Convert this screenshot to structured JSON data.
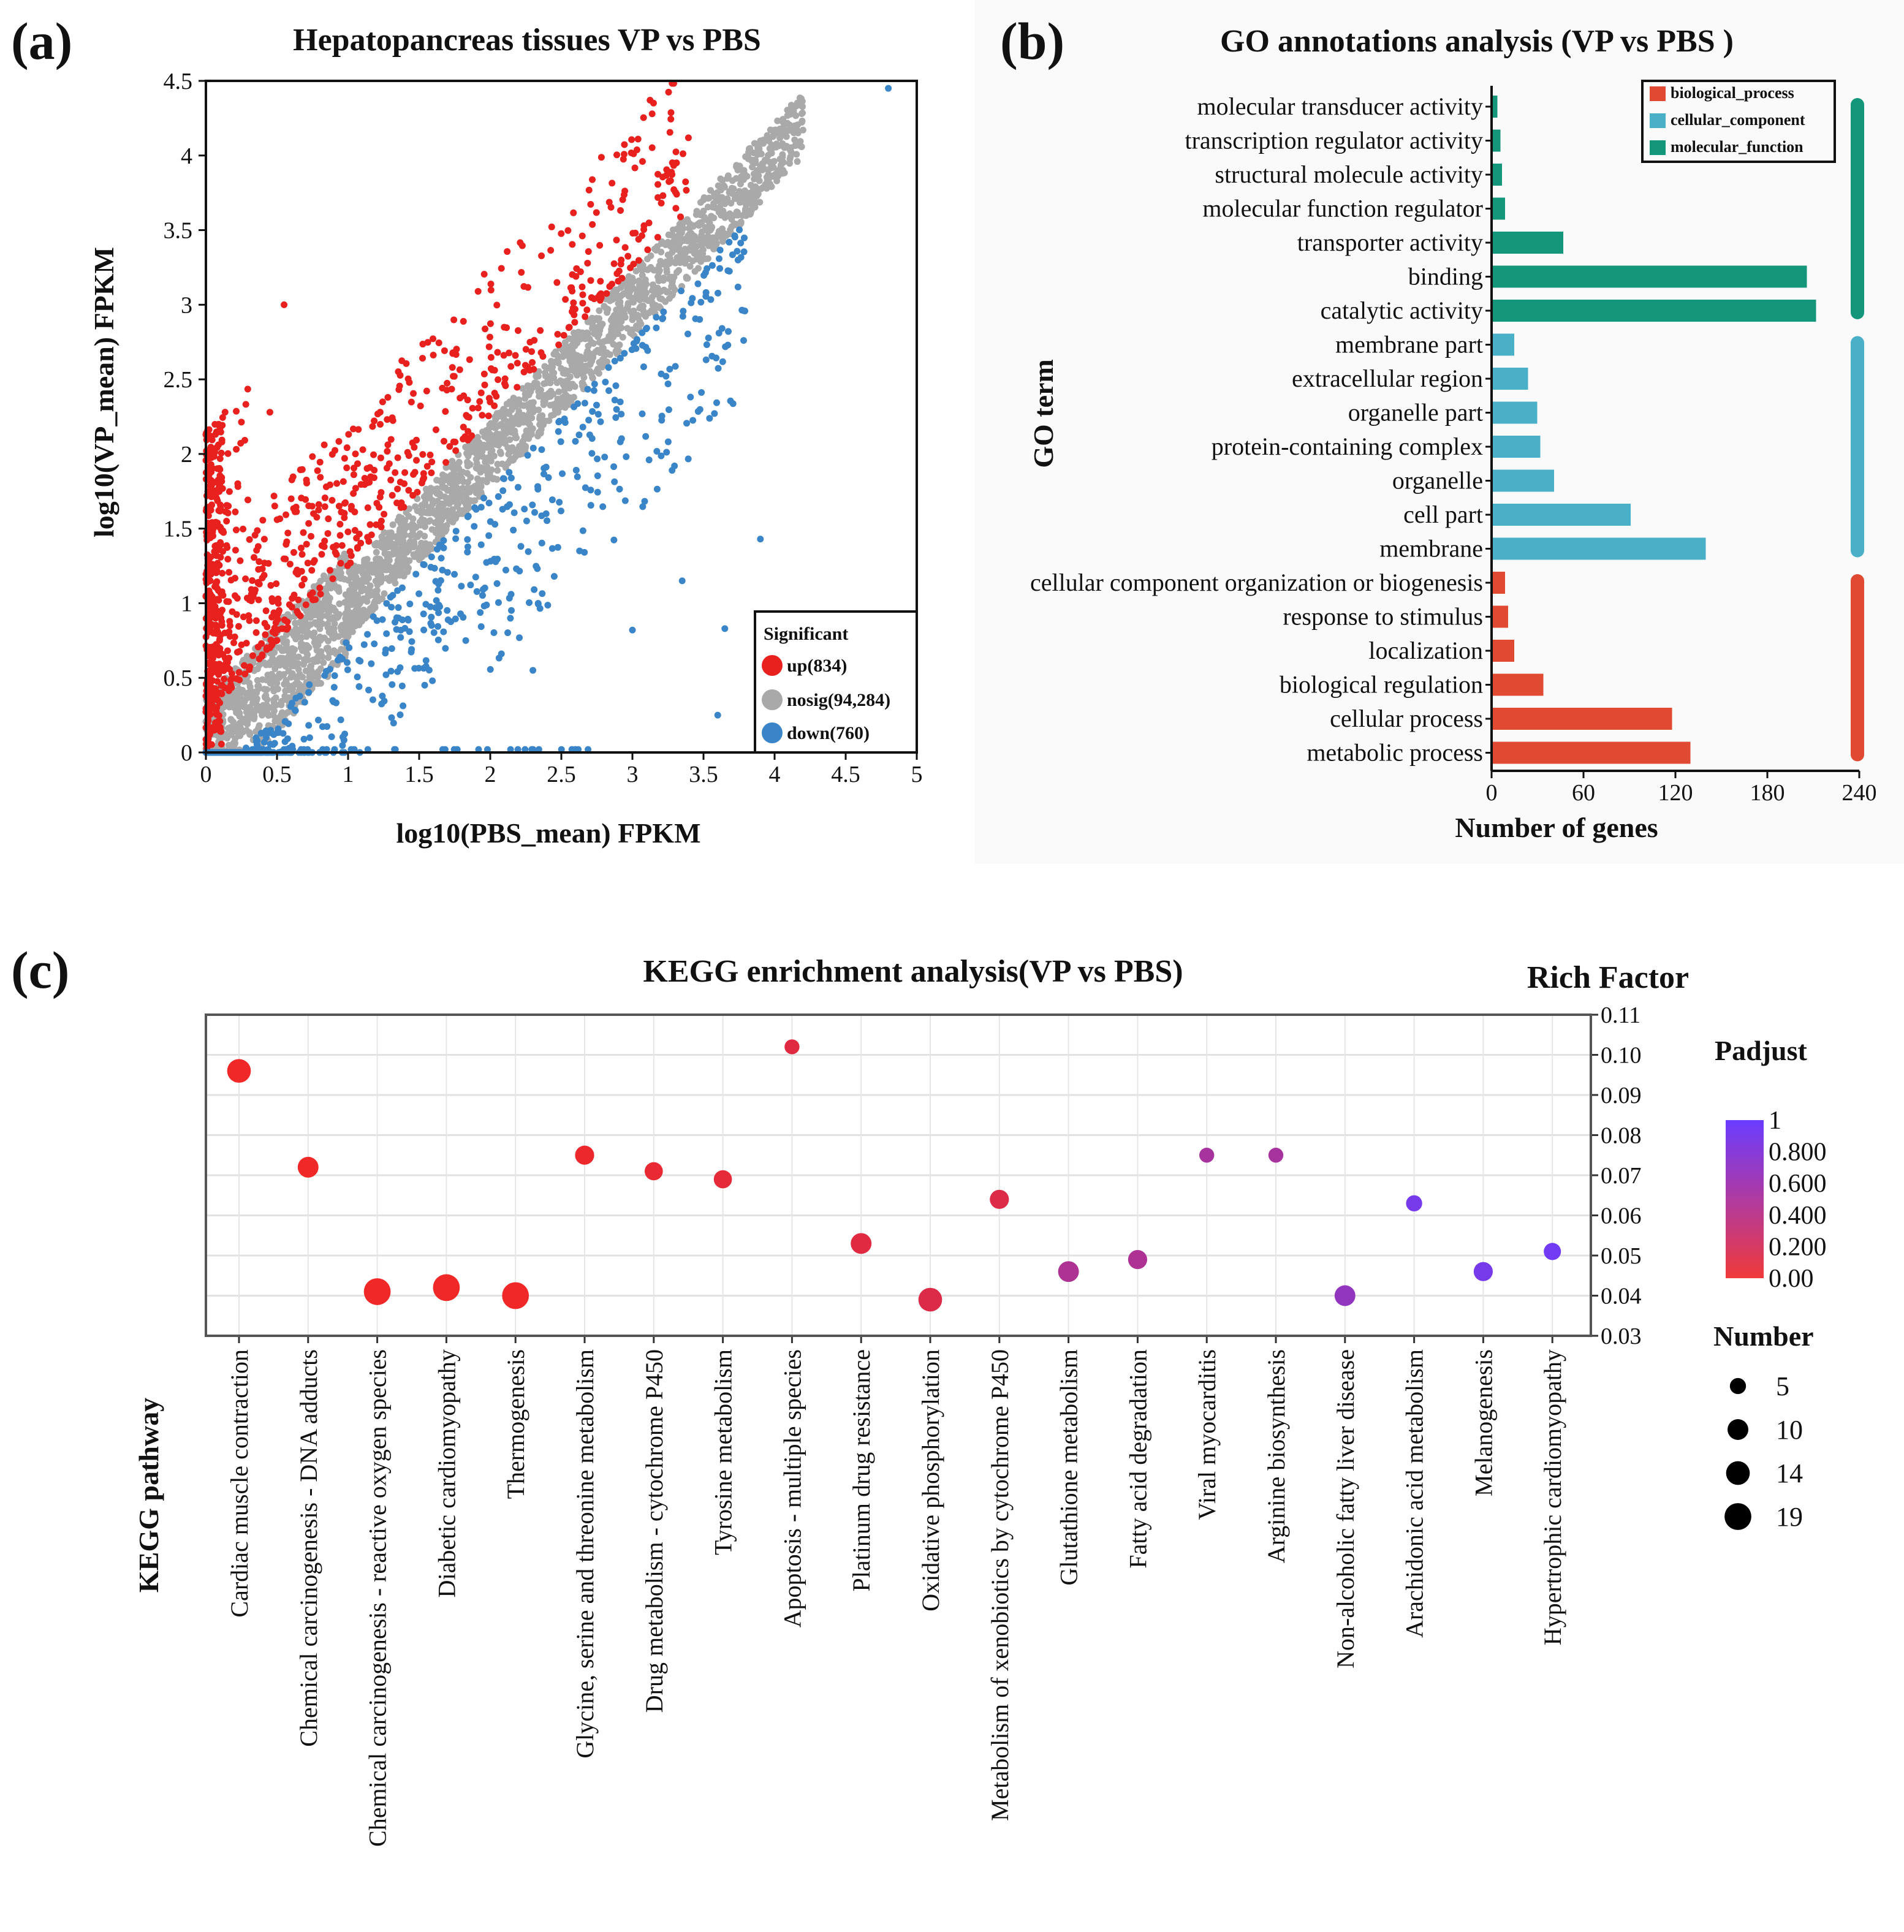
{
  "chart_data": [
    {
      "panel": "(a)",
      "type": "scatter",
      "title": "Hepatopancreas tissues VP vs PBS",
      "xlabel": "log10(PBS_mean) FPKM",
      "ylabel": "log10(VP_mean) FPKM",
      "xlim": [
        0,
        5
      ],
      "ylim": [
        0,
        4.5
      ],
      "xticks": [
        "0",
        "0.5",
        "1",
        "1.5",
        "2",
        "2.5",
        "3",
        "3.5",
        "4",
        "4.5",
        "5"
      ],
      "yticks": [
        "0",
        "0.5",
        "1",
        "1.5",
        "2",
        "2.5",
        "3",
        "3.5",
        "4",
        "4.5"
      ],
      "legend": {
        "title": "Significant",
        "placement": "bottom-right",
        "entries": [
          {
            "label": "up(834)",
            "color": "#e8211f",
            "count": 834
          },
          {
            "label": "nosig(94,284)",
            "color": "#a9a9a9",
            "count": 94284
          },
          {
            "label": "down(760)",
            "color": "#3a85c8",
            "count": 760
          }
        ]
      },
      "grid": false
    },
    {
      "panel": "(b)",
      "type": "bar",
      "orientation": "horizontal",
      "title": "GO annotations analysis (VP vs PBS )",
      "xlabel": "Number of genes",
      "ylabel": "GO term",
      "xlim": [
        0,
        240
      ],
      "xticks": [
        "0",
        "60",
        "120",
        "180",
        "240"
      ],
      "legend": {
        "placement": "top-right",
        "entries": [
          {
            "label": "biological_process",
            "color": "#e04a33"
          },
          {
            "label": "cellular_component",
            "color": "#4ab0c8"
          },
          {
            "label": "molecular_function",
            "color": "#14967a"
          }
        ]
      },
      "categories": [
        "molecular transducer activity",
        "transcription regulator activity",
        "structural molecule activity",
        "molecular function regulator",
        "transporter activity",
        "binding",
        "catalytic activity",
        "membrane part",
        "extracellular region",
        "organelle part",
        "protein-containing complex",
        "organelle",
        "cell part",
        "membrane",
        "cellular component organization or biogenesis",
        "response to stimulus",
        "localization",
        "biological regulation",
        "cellular process",
        "metabolic process"
      ],
      "values": [
        3,
        5,
        6,
        8,
        46,
        205,
        211,
        14,
        23,
        29,
        31,
        40,
        90,
        139,
        8,
        10,
        14,
        33,
        117,
        129
      ],
      "groups": [
        "molecular_function",
        "molecular_function",
        "molecular_function",
        "molecular_function",
        "molecular_function",
        "molecular_function",
        "molecular_function",
        "cellular_component",
        "cellular_component",
        "cellular_component",
        "cellular_component",
        "cellular_component",
        "cellular_component",
        "cellular_component",
        "biological_process",
        "biological_process",
        "biological_process",
        "biological_process",
        "biological_process",
        "biological_process"
      ]
    },
    {
      "panel": "(c)",
      "type": "scatter",
      "title": "KEGG enrichment analysis(VP vs PBS)",
      "ylabel_right": "Rich Factor",
      "xlabel": "KEGG pathway",
      "ylim": [
        0.03,
        0.11
      ],
      "yticks": [
        "0.03",
        "0.04",
        "0.05",
        "0.06",
        "0.07",
        "0.08",
        "0.09",
        "0.10",
        "0.11"
      ],
      "categories": [
        "Cardiac muscle contraction",
        "Chemical carcinogenesis - DNA adducts",
        "Chemical carcinogenesis - reactive oxygen species",
        "Diabetic cardiomyopathy",
        "Thermogenesis",
        "Glycine, serine and threonine metabolism",
        "Drug metabolism - cytochrome P450",
        "Tyrosine metabolism",
        "Apoptosis - multiple species",
        "Platinum drug resistance",
        "Oxidative phosphorylation",
        "Metabolism of xenobiotics by cytochrome P450",
        "Glutathione metabolism",
        "Fatty acid degradation",
        "Viral myocarditis",
        "Arginine biosynthesis",
        "Non-alcoholic fatty liver disease",
        "Arachidonic acid metabolism",
        "Melanogenesis",
        "Hypertrophic cardiomyopathy"
      ],
      "rich_factor": [
        0.096,
        0.072,
        0.041,
        0.042,
        0.04,
        0.075,
        0.071,
        0.069,
        0.102,
        0.053,
        0.039,
        0.064,
        0.046,
        0.049,
        0.075,
        0.075,
        0.04,
        0.063,
        0.046,
        0.051
      ],
      "padjust": [
        0.0,
        0.0,
        0.0,
        0.0,
        0.0,
        0.02,
        0.05,
        0.08,
        0.12,
        0.12,
        0.15,
        0.15,
        0.5,
        0.5,
        0.55,
        0.55,
        0.7,
        0.9,
        0.9,
        0.95
      ],
      "number": [
        14,
        10,
        19,
        19,
        19,
        8,
        7,
        7,
        4,
        10,
        14,
        8,
        10,
        8,
        4,
        4,
        10,
        5,
        8,
        6
      ],
      "colorbar": {
        "title": "Padjust",
        "ticks": [
          "1",
          "0.800",
          "0.600",
          "0.400",
          "0.200",
          "0.00"
        ],
        "low_color": "#f03a3a",
        "high_color": "#6a3cff"
      },
      "size_legend": {
        "title": "Number",
        "values": [
          "5",
          "10",
          "14",
          "19"
        ]
      },
      "grid": true
    }
  ]
}
